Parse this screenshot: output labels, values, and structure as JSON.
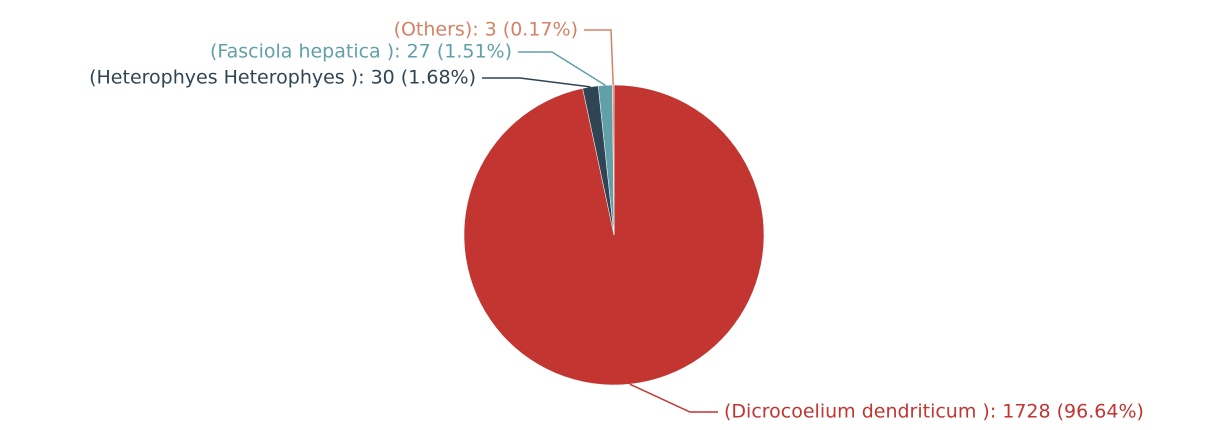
{
  "chart_data": {
    "type": "pie",
    "title": "",
    "slices": [
      {
        "name": "Dicrocoelium dendriticum",
        "value": 1728,
        "percent": 96.64,
        "color": "#c23531",
        "label_color": "#c23531",
        "label": "(Dicrocoelium dendriticum ): 1728 (96.64%)"
      },
      {
        "name": "Heterophyes Heterophyes",
        "value": 30,
        "percent": 1.68,
        "color": "#2f4554",
        "label_color": "#2f4554",
        "label": "(Heterophyes Heterophyes ): 30 (1.68%)"
      },
      {
        "name": "Fasciola hepatica",
        "value": 27,
        "percent": 1.51,
        "color": "#61a0a8",
        "label_color": "#61a0a8",
        "label": "(Fasciola hepatica ): 27 (1.51%)"
      },
      {
        "name": "Others",
        "value": 3,
        "percent": 0.17,
        "color": "#d48265",
        "label_color": "#d48265",
        "label": "(Others): 3 (0.17%)"
      }
    ],
    "start_angle": "12-o'clock",
    "direction": "clockwise",
    "legend": "none",
    "label_placement": "outside-with-leader-lines"
  }
}
